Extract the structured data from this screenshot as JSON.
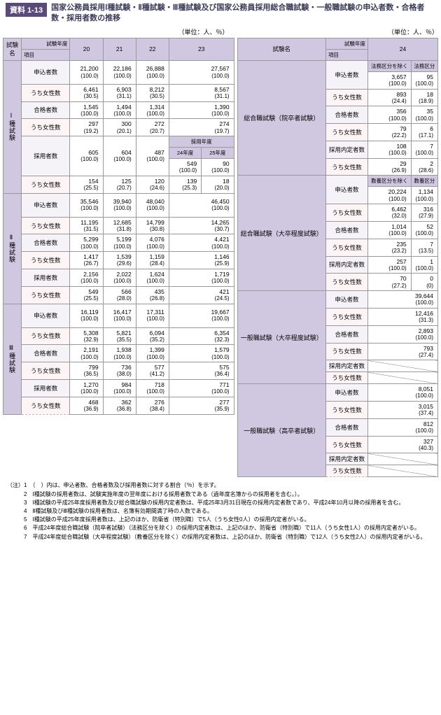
{
  "badge": "資料 1-13",
  "title": "国家公務員採用Ⅰ種試験・Ⅱ種試験・Ⅲ種試験及び国家公務員採用総合職試験・一般職試験の申込者数・合格者数・採用者数の推移",
  "unit": "（単位：人、％）",
  "headers": {
    "examName": "試験名",
    "item": "項目",
    "fy": "試験年度",
    "y20": "20",
    "y21": "21",
    "y22": "22",
    "y23": "23",
    "y24": "24",
    "adoptFY": "採用年度",
    "fy24": "24年度",
    "fy25": "25年度",
    "exclLaw": "法務区分を除く",
    "law": "法務区分",
    "exclEdu": "教養区分を除く",
    "edu": "教養区分"
  },
  "labels": {
    "applicants": "申込者数",
    "passers": "合格者数",
    "hires": "採用者数",
    "offers": "採用内定者数",
    "female": "うち女性数"
  },
  "cats": {
    "t1": "Ⅰ種試験",
    "t2": "Ⅱ種試験",
    "t3": "Ⅲ種試験",
    "sogo_in": "総合職試験（院卒者試験）",
    "sogo_dai": "総合職試験（大卒程度試験）",
    "ippan_dai": "一般職試験（大卒程度試験）",
    "ippan_ko": "一般職試験（高卒者試験）"
  },
  "left": {
    "t1": {
      "app": {
        "20": [
          "21,200",
          "(100.0)"
        ],
        "21": [
          "22,186",
          "(100.0)"
        ],
        "22": [
          "26,888",
          "(100.0)"
        ],
        "23": [
          "27,567",
          "(100.0)"
        ]
      },
      "appF": {
        "20": [
          "6,461",
          "(30.5)"
        ],
        "21": [
          "6,903",
          "(31.1)"
        ],
        "22": [
          "8,212",
          "(30.5)"
        ],
        "23": [
          "8,567",
          "(31.1)"
        ]
      },
      "pas": {
        "20": [
          "1,545",
          "(100.0)"
        ],
        "21": [
          "1,494",
          "(100.0)"
        ],
        "22": [
          "1,314",
          "(100.0)"
        ],
        "23": [
          "1,390",
          "(100.0)"
        ]
      },
      "pasF": {
        "20": [
          "297",
          "(19.2)"
        ],
        "21": [
          "300",
          "(20.1)"
        ],
        "22": [
          "272",
          "(20.7)"
        ],
        "23": [
          "274",
          "(19.7)"
        ]
      },
      "hir": {
        "20": [
          "605",
          "(100.0)"
        ],
        "21": [
          "604",
          "(100.0)"
        ],
        "22": [
          "487",
          "(100.0)"
        ],
        "24": [
          "549",
          "(100.0)"
        ],
        "25": [
          "90",
          "(100.0)"
        ]
      },
      "hirF": {
        "20": [
          "154",
          "(25.5)"
        ],
        "21": [
          "125",
          "(20.7)"
        ],
        "22": [
          "120",
          "(24.6)"
        ],
        "24": [
          "139",
          "(25.3)"
        ],
        "25": [
          "18",
          "(20.0)"
        ]
      }
    },
    "t2": {
      "app": {
        "20": [
          "35,546",
          "(100.0)"
        ],
        "21": [
          "39,940",
          "(100.0)"
        ],
        "22": [
          "48,040",
          "(100.0)"
        ],
        "23": [
          "46,450",
          "(100.0)"
        ]
      },
      "appF": {
        "20": [
          "11,195",
          "(31.5)"
        ],
        "21": [
          "12,685",
          "(31.8)"
        ],
        "22": [
          "14,799",
          "(30.8)"
        ],
        "23": [
          "14,265",
          "(30.7)"
        ]
      },
      "pas": {
        "20": [
          "5,299",
          "(100.0)"
        ],
        "21": [
          "5,199",
          "(100.0)"
        ],
        "22": [
          "4,076",
          "(100.0)"
        ],
        "23": [
          "4,421",
          "(100.0)"
        ]
      },
      "pasF": {
        "20": [
          "1,417",
          "(26.7)"
        ],
        "21": [
          "1,539",
          "(29.6)"
        ],
        "22": [
          "1,159",
          "(28.4)"
        ],
        "23": [
          "1,146",
          "(25.9)"
        ]
      },
      "hir": {
        "20": [
          "2,156",
          "(100.0)"
        ],
        "21": [
          "2,022",
          "(100.0)"
        ],
        "22": [
          "1,624",
          "(100.0)"
        ],
        "23": [
          "1,719",
          "(100.0)"
        ]
      },
      "hirF": {
        "20": [
          "549",
          "(25.5)"
        ],
        "21": [
          "566",
          "(28.0)"
        ],
        "22": [
          "435",
          "(26.8)"
        ],
        "23": [
          "421",
          "(24.5)"
        ]
      }
    },
    "t3": {
      "app": {
        "20": [
          "16,119",
          "(100.0)"
        ],
        "21": [
          "16,417",
          "(100.0)"
        ],
        "22": [
          "17,311",
          "(100.0)"
        ],
        "23": [
          "19,667",
          "(100.0)"
        ]
      },
      "appF": {
        "20": [
          "5,308",
          "(32.9)"
        ],
        "21": [
          "5,821",
          "(35.5)"
        ],
        "22": [
          "6,094",
          "(35.2)"
        ],
        "23": [
          "6,354",
          "(32.3)"
        ]
      },
      "pas": {
        "20": [
          "2,191",
          "(100.0)"
        ],
        "21": [
          "1,938",
          "(100.0)"
        ],
        "22": [
          "1,399",
          "(100.0)"
        ],
        "23": [
          "1,579",
          "(100.0)"
        ]
      },
      "pasF": {
        "20": [
          "799",
          "(36.5)"
        ],
        "21": [
          "736",
          "(38.0)"
        ],
        "22": [
          "577",
          "(41.2)"
        ],
        "23": [
          "575",
          "(36.4)"
        ]
      },
      "hir": {
        "20": [
          "1,270",
          "(100.0)"
        ],
        "21": [
          "984",
          "(100.0)"
        ],
        "22": [
          "718",
          "(100.0)"
        ],
        "23": [
          "771",
          "(100.0)"
        ]
      },
      "hirF": {
        "20": [
          "468",
          "(36.9)"
        ],
        "21": [
          "362",
          "(36.8)"
        ],
        "22": [
          "276",
          "(38.4)"
        ],
        "23": [
          "277",
          "(35.9)"
        ]
      }
    }
  },
  "right": {
    "sogo_in": {
      "app": {
        "a": [
          "3,657",
          "(100.0)"
        ],
        "b": [
          "95",
          "(100.0)"
        ]
      },
      "appF": {
        "a": [
          "893",
          "(24.4)"
        ],
        "b": [
          "18",
          "(18.9)"
        ]
      },
      "pas": {
        "a": [
          "356",
          "(100.0)"
        ],
        "b": [
          "35",
          "(100.0)"
        ]
      },
      "pasF": {
        "a": [
          "79",
          "(22.2)"
        ],
        "b": [
          "6",
          "(17.1)"
        ]
      },
      "off": {
        "a": [
          "108",
          "(100.0)"
        ],
        "b": [
          "7",
          "(100.0)"
        ]
      },
      "offF": {
        "a": [
          "29",
          "(26.9)"
        ],
        "b": [
          "2",
          "(28.6)"
        ]
      }
    },
    "sogo_dai": {
      "app": {
        "a": [
          "20,224",
          "(100.0)"
        ],
        "b": [
          "1,134",
          "(100.0)"
        ]
      },
      "appF": {
        "a": [
          "6,462",
          "(32.0)"
        ],
        "b": [
          "316",
          "(27.9)"
        ]
      },
      "pas": {
        "a": [
          "1,014",
          "(100.0)"
        ],
        "b": [
          "52",
          "(100.0)"
        ]
      },
      "pasF": {
        "a": [
          "235",
          "(23.2)"
        ],
        "b": [
          "7",
          "(13.5)"
        ]
      },
      "off": {
        "a": [
          "257",
          "(100.0)"
        ],
        "b": [
          "1",
          "(100.0)"
        ]
      },
      "offF": {
        "a": [
          "70",
          "(27.2)"
        ],
        "b": [
          "0",
          "(0)"
        ]
      }
    },
    "ippan_dai": {
      "app": [
        "39,644",
        "(100.0)"
      ],
      "appF": [
        "12,416",
        "(31.3)"
      ],
      "pas": [
        "2,893",
        "(100.0)"
      ],
      "pasF": [
        "793",
        "(27.4)"
      ]
    },
    "ippan_ko": {
      "app": [
        "8,051",
        "(100.0)"
      ],
      "appF": [
        "3,015",
        "(37.4)"
      ],
      "pas": [
        "812",
        "(100.0)"
      ],
      "pasF": [
        "327",
        "(40.3)"
      ]
    }
  },
  "notes": [
    "（注）1　（　）内は、申込者数、合格者数及び採用者数に対する割合（％）を示す。",
    "　　　2　Ⅰ種試験の採用者数は、試験実施年度の翌年度における採用者数である（過年度名簿からの採用者を含む。）。",
    "　　　3　Ⅰ種試験の平成25年度採用者数及び総合職試験の採用内定者数は、平成25年3月31日現在の採用内定者数であり、平成24年10月以降の採用者を含む。",
    "　　　4　Ⅱ種試験及びⅢ種試験の採用者数は、名簿有効期間満了時の人数である。",
    "　　　5　Ⅰ種試験の平成25年度採用者数は、上記のほか、防衛省（特別職）で5人（うち女性0人）の採用内定者がいる。",
    "　　　6　平成24年度総合職試験（院卒者試験）（法務区分を除く）の採用内定者数は、上記のほか、防衛省（特別職）で11人（うち女性1人）の採用内定者がいる。",
    "　　　7　平成24年度総合職試験（大卒程度試験）（教養区分を除く）の採用内定者数は、上記のほか、防衛省（特別職）で12人（うち女性2人）の採用内定者がいる。"
  ]
}
